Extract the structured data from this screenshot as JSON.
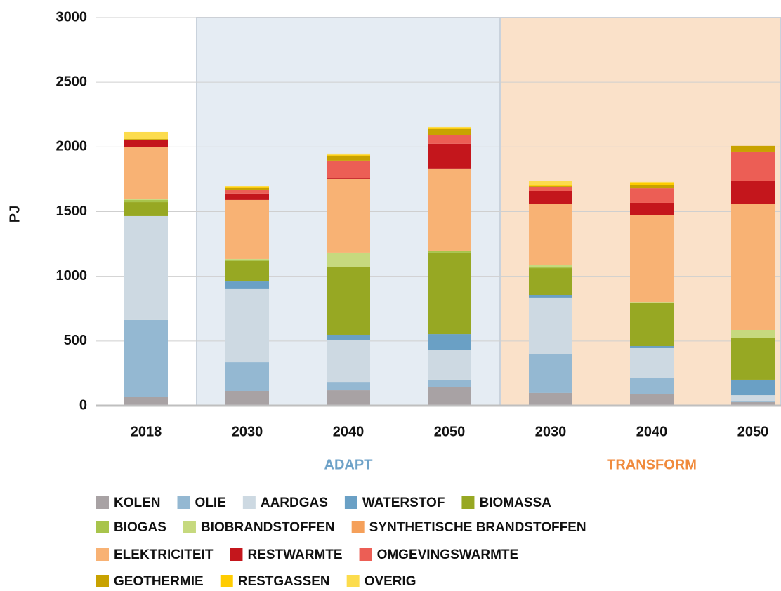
{
  "chart_data": {
    "type": "stacked_bar",
    "y_label": "PJ",
    "categories": [
      "2018",
      "2030",
      "2040",
      "2050",
      "2030",
      "2040",
      "2050"
    ],
    "groups": [
      {
        "label": "ADAPT",
        "from": 1,
        "to": 3,
        "color": "#6ea2c8",
        "fill": "#e5ecf3"
      },
      {
        "label": "TRANSFORM",
        "from": 4,
        "to": 6,
        "color": "#f08a3c",
        "fill": "#fae1c9"
      }
    ],
    "ylim": [
      0,
      3000
    ],
    "yticks": [
      0,
      500,
      1000,
      1500,
      2000,
      2500,
      3000
    ],
    "grid": true,
    "series": [
      {
        "name": "KOLEN",
        "color": "#a8a2a4",
        "values": [
          70,
          114,
          119,
          141,
          98,
          92,
          27
        ]
      },
      {
        "name": "OLIE",
        "color": "#94b8d2",
        "values": [
          592,
          222,
          65,
          60,
          298,
          120,
          5
        ]
      },
      {
        "name": "AARDGAS",
        "color": "#cdd9e2",
        "values": [
          803,
          565,
          326,
          233,
          440,
          233,
          49
        ]
      },
      {
        "name": "WATERSTOF",
        "color": "#6aa0c5",
        "values": [
          0,
          59,
          38,
          119,
          16,
          16,
          120
        ]
      },
      {
        "name": "BIOMASSA",
        "color": "#97a823",
        "values": [
          108,
          158,
          521,
          630,
          211,
          331,
          320
        ]
      },
      {
        "name": "BIOGAS",
        "color": "#a8c44c",
        "values": [
          17,
          11,
          5,
          11,
          11,
          5,
          5
        ]
      },
      {
        "name": "BIOBRANDSTOFFEN",
        "color": "#c6d97e",
        "values": [
          10,
          5,
          109,
          5,
          11,
          5,
          60
        ]
      },
      {
        "name": "SYNTHETISCHE BRANDSTOFFEN",
        "color": "#f5a05a",
        "values": [
          0,
          0,
          0,
          0,
          0,
          0,
          0
        ]
      },
      {
        "name": "ELEKTRICITEIT",
        "color": "#f8b274",
        "values": [
          397,
          456,
          570,
          630,
          472,
          673,
          971
        ]
      },
      {
        "name": "RESTWARMTE",
        "color": "#c4161c",
        "values": [
          54,
          49,
          5,
          195,
          103,
          93,
          179
        ]
      },
      {
        "name": "OMGEVINGSWARMTE",
        "color": "#ec5e55",
        "values": [
          0,
          32,
          136,
          65,
          33,
          113,
          228
        ]
      },
      {
        "name": "GEOTHERMIE",
        "color": "#c8a200",
        "values": [
          10,
          11,
          38,
          49,
          5,
          28,
          44
        ]
      },
      {
        "name": "RESTGASSEN",
        "color": "#ffcc00",
        "values": [
          0,
          5,
          5,
          5,
          5,
          11,
          0
        ]
      },
      {
        "name": "OVERIG",
        "color": "#fcdc4d",
        "values": [
          55,
          11,
          11,
          11,
          33,
          11,
          0
        ]
      }
    ]
  }
}
